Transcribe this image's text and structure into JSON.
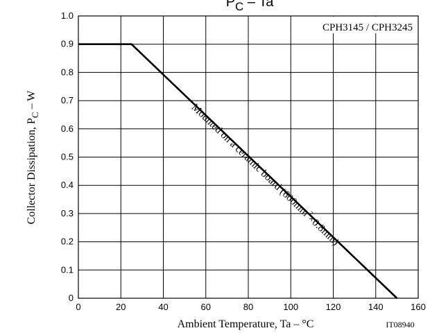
{
  "chart_data": {
    "type": "line",
    "title": {
      "main": "P",
      "sub": "C",
      "rest": " – Ta"
    },
    "inset_label": "CPH3145 / CPH3245",
    "xlabel": "Ambient Temperature, Ta  –  °C",
    "ylabel": {
      "main": "Collector Dissipation, P",
      "sub": "C",
      "rest": "  –  W"
    },
    "figure_code": "IT08940",
    "xlim": [
      0,
      160
    ],
    "ylim": [
      0,
      1.0
    ],
    "xticks": [
      "0",
      "20",
      "40",
      "60",
      "80",
      "100",
      "120",
      "140",
      "160"
    ],
    "yticks": [
      "0",
      "0.1",
      "0.2",
      "0.3",
      "0.4",
      "0.5",
      "0.6",
      "0.7",
      "0.8",
      "0.9",
      "1.0"
    ],
    "grid": true,
    "series": [
      {
        "x": [
          0,
          25,
          150
        ],
        "y": [
          0.9,
          0.9,
          0
        ]
      }
    ],
    "annotation": {
      "pre": "Mounted on a ceramic board (600mm",
      "sup": "2",
      "post": "×0.8mm)",
      "anchor": [
        87,
        0.43
      ]
    }
  }
}
